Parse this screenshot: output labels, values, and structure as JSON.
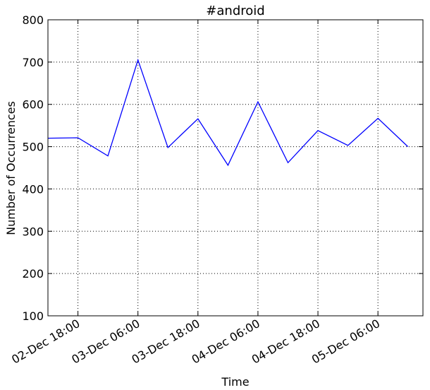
{
  "chart_data": {
    "type": "line",
    "title": "#android",
    "xlabel": "Time",
    "ylabel": "Number of Occurrences",
    "ylim": [
      100,
      800
    ],
    "yticks": [
      100,
      200,
      300,
      400,
      500,
      600,
      700,
      800
    ],
    "xlim": [
      "02-Dec 12:00",
      "05-Dec 15:00"
    ],
    "xticks": [
      "02-Dec 18:00",
      "03-Dec 06:00",
      "03-Dec 18:00",
      "04-Dec 06:00",
      "04-Dec 18:00",
      "05-Dec 06:00"
    ],
    "grid": true,
    "line_color": "#0000ff",
    "series": [
      {
        "x": [
          "02-Dec 12:00",
          "02-Dec 18:00",
          "03-Dec 00:00",
          "03-Dec 06:00",
          "03-Dec 12:00",
          "03-Dec 18:00",
          "04-Dec 00:00",
          "04-Dec 06:00",
          "04-Dec 12:00",
          "04-Dec 18:00",
          "05-Dec 00:00",
          "05-Dec 06:00",
          "05-Dec 12:00"
        ],
        "values": [
          520,
          521,
          478,
          705,
          498,
          566,
          456,
          606,
          462,
          538,
          503,
          567,
          500
        ]
      }
    ]
  }
}
